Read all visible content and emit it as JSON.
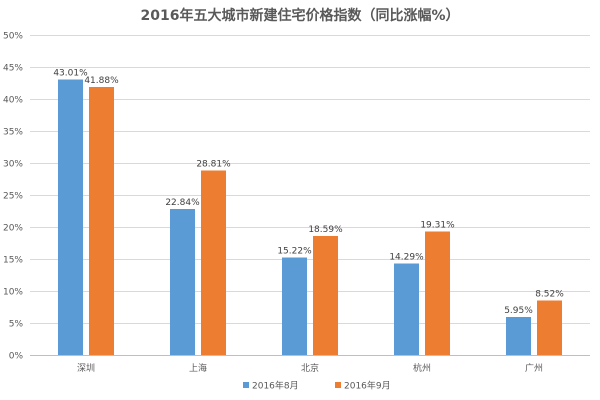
{
  "chart_data": {
    "type": "bar",
    "title": "2016年五大城市新建住宅价格指数（同比涨幅%）",
    "categories": [
      "深圳",
      "上海",
      "北京",
      "杭州",
      "广州"
    ],
    "series": [
      {
        "name": "2016年8月",
        "color": "#5B9BD5",
        "values": [
          43.01,
          22.84,
          15.22,
          14.29,
          5.95
        ],
        "labels": [
          "43.01%",
          "22.84%",
          "15.22%",
          "14.29%",
          "5.95%"
        ]
      },
      {
        "name": "2016年9月",
        "color": "#ED7D31",
        "values": [
          41.88,
          28.81,
          18.59,
          19.31,
          8.52
        ],
        "labels": [
          "41.88%",
          "28.81%",
          "18.59%",
          "19.31%",
          "8.52%"
        ]
      }
    ],
    "xlabel": "",
    "ylabel": "",
    "ylim": [
      0,
      50
    ],
    "yticks": [
      0,
      5,
      10,
      15,
      20,
      25,
      30,
      35,
      40,
      45,
      50
    ],
    "ytick_labels": [
      "0%",
      "5%",
      "10%",
      "15%",
      "20%",
      "25%",
      "30%",
      "35%",
      "40%",
      "45%",
      "50%"
    ],
    "grid": true,
    "legend": "bottom-center"
  }
}
